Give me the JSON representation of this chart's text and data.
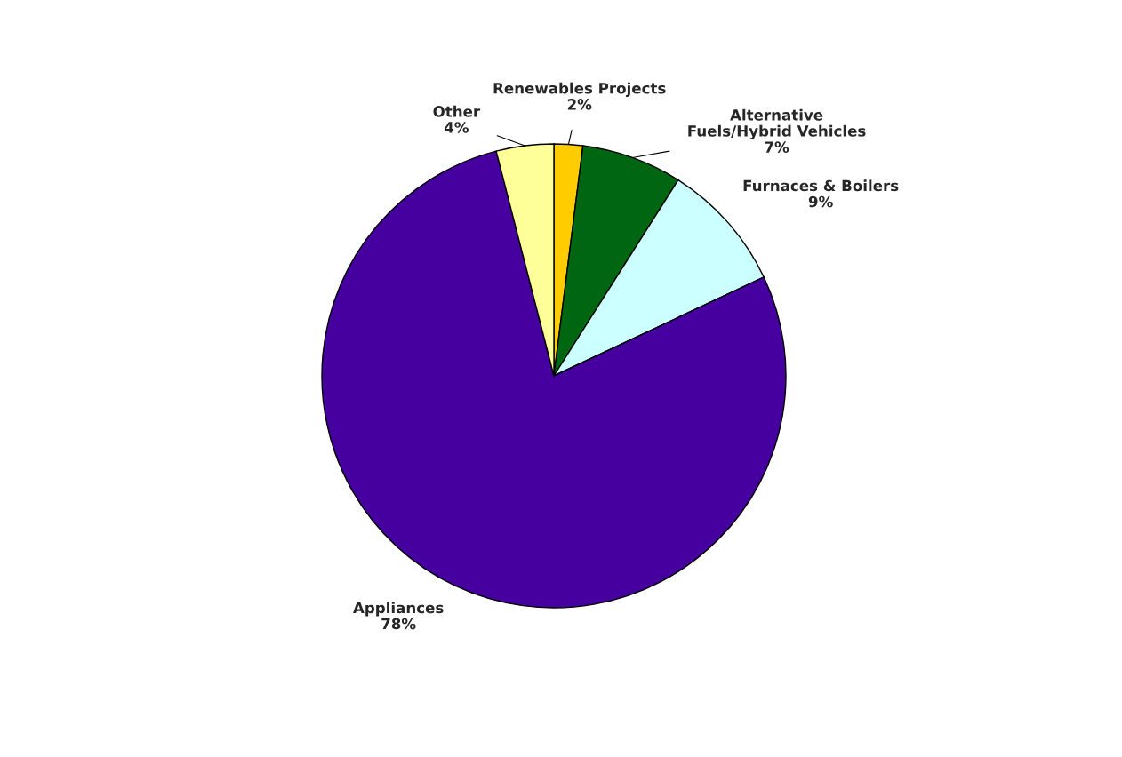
{
  "chart_data": {
    "type": "pie",
    "categories": [
      "Renewables Projects",
      "Alternative\nFuels/Hybrid Vehicles",
      "Furnaces & Boilers",
      "Appliances",
      "Other"
    ],
    "values": [
      2,
      7,
      9,
      78,
      4
    ],
    "value_labels": [
      "2%",
      "7%",
      "9%",
      "78%",
      "4%"
    ],
    "colors": [
      "#ffcc00",
      "#006611",
      "#ccffff",
      "#4700a0",
      "#ffff99"
    ]
  }
}
